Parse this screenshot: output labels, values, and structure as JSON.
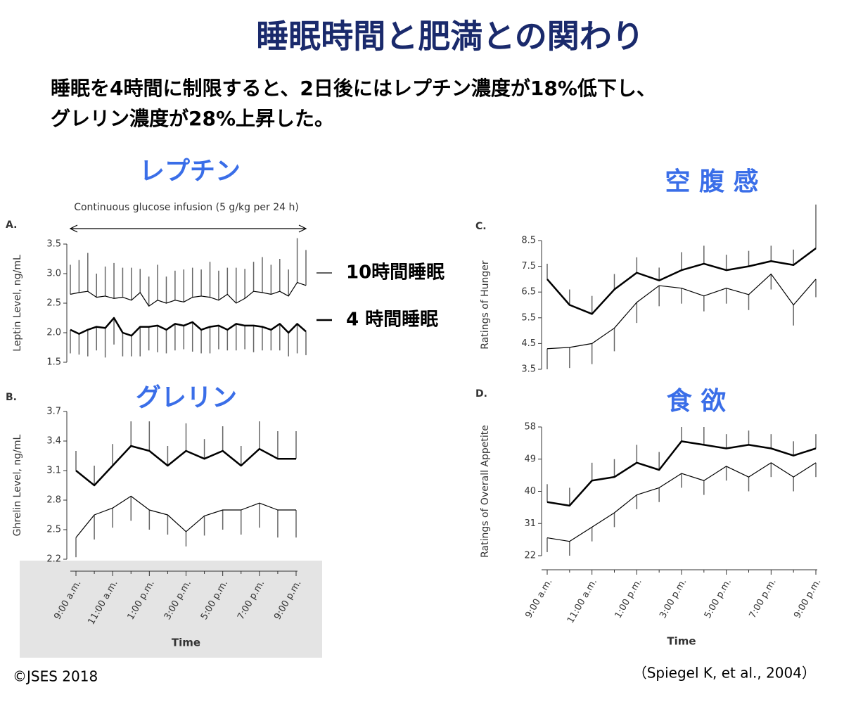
{
  "title": "睡眠時間と肥満との関わり",
  "subtitle": [
    "睡眠を4時間に制限すると、2日後にはレプチン濃度が18%低下し、",
    "グレリン濃度が28%上昇した。"
  ],
  "copyright": "©JSES 2018",
  "source": "（Spiegel K, et al., 2004）",
  "chart_data": [
    {
      "type": "line",
      "title": "レプチン",
      "panel": "A.",
      "annotation": "Continuous glucose infusion (5 g/kg per 24 h)",
      "y_label": "Leptin Level, ng/mL",
      "categories": [
        null,
        null,
        null,
        null,
        null,
        null,
        null,
        null,
        null,
        null,
        null,
        null,
        null,
        null,
        null,
        null,
        null,
        null,
        null,
        null,
        null,
        null,
        null,
        null,
        null,
        null,
        null,
        null
      ],
      "ylim": [
        1.5,
        3.5
      ],
      "yticks": [
        1.5,
        {
          "value": 2,
          "label": "2.0"
        },
        2.5,
        {
          "value": 3,
          "label": "3.0"
        },
        3.5
      ],
      "series": [
        {
          "name": "10時間睡眠",
          "color": "#000000",
          "width": 1.2,
          "error_side": "up",
          "values": [
            2.65,
            2.68,
            2.7,
            2.6,
            2.62,
            2.58,
            2.6,
            2.55,
            2.68,
            2.45,
            2.55,
            2.5,
            2.55,
            2.52,
            2.6,
            2.62,
            2.6,
            2.55,
            2.65,
            2.5,
            2.58,
            2.7,
            2.68,
            2.65,
            2.7,
            2.62,
            2.85,
            2.8
          ],
          "errors": [
            0.5,
            0.55,
            0.65,
            0.4,
            0.5,
            0.6,
            0.5,
            0.55,
            0.4,
            0.5,
            0.6,
            0.45,
            0.5,
            0.55,
            0.5,
            0.45,
            0.6,
            0.5,
            0.45,
            0.6,
            0.5,
            0.5,
            0.6,
            0.5,
            0.55,
            0.45,
            0.75,
            0.6
          ]
        },
        {
          "name": "4 時間睡眠",
          "color": "#000000",
          "width": 2.5,
          "error_side": "down",
          "values": [
            2.05,
            1.98,
            2.05,
            2.1,
            2.08,
            2.25,
            2.0,
            1.95,
            2.1,
            2.1,
            2.12,
            2.05,
            2.15,
            2.12,
            2.18,
            2.05,
            2.1,
            2.12,
            2.05,
            2.15,
            2.12,
            2.12,
            2.1,
            2.05,
            2.15,
            2.0,
            2.15,
            2.02
          ],
          "errors": [
            0.4,
            0.35,
            0.45,
            0.4,
            0.5,
            0.45,
            0.4,
            0.35,
            0.5,
            0.4,
            0.45,
            0.4,
            0.45,
            0.4,
            0.5,
            0.4,
            0.45,
            0.4,
            0.35,
            0.45,
            0.4,
            0.45,
            0.4,
            0.35,
            0.45,
            0.4,
            0.5,
            0.4
          ]
        }
      ]
    },
    {
      "type": "line",
      "title": "グレリン",
      "panel": "B.",
      "y_label": "Ghrelin Level, ng/mL",
      "x_label": "Time",
      "categories": [
        "9:00 a.m.",
        null,
        "11:00 a.m.",
        null,
        "1:00 p.m.",
        null,
        "3:00 p.m.",
        null,
        "5:00 p.m.",
        null,
        "7:00 p.m.",
        null,
        "9:00 p.m."
      ],
      "ylim": [
        2.2,
        3.7
      ],
      "yticks": [
        2.2,
        2.5,
        2.8,
        3.1,
        3.4,
        3.7
      ],
      "series": [
        {
          "color": "#000000",
          "width": 2.5,
          "error_side": "up",
          "values": [
            3.1,
            2.95,
            3.15,
            3.35,
            3.3,
            3.15,
            3.3,
            3.22,
            3.3,
            3.15,
            3.32,
            3.22,
            3.22
          ],
          "errors": [
            0.2,
            0.2,
            0.22,
            0.25,
            0.3,
            0.2,
            0.28,
            0.2,
            0.25,
            0.2,
            0.28,
            0.28,
            0.28
          ]
        },
        {
          "color": "#000000",
          "width": 1.2,
          "error_side": "down",
          "values": [
            2.42,
            2.65,
            2.72,
            2.84,
            2.7,
            2.65,
            2.48,
            2.64,
            2.7,
            2.7,
            2.77,
            2.7,
            2.7
          ],
          "errors": [
            0.2,
            0.25,
            0.2,
            0.25,
            0.2,
            0.2,
            0.15,
            0.2,
            0.2,
            0.25,
            0.25,
            0.28,
            0.28
          ]
        }
      ]
    },
    {
      "type": "line",
      "title": "空 腹 感",
      "panel": "C.",
      "y_label": "Ratings of Hunger",
      "categories": [
        null,
        null,
        null,
        null,
        null,
        null,
        null,
        null,
        null,
        null,
        null,
        null,
        null
      ],
      "ylim": [
        3.5,
        8.5
      ],
      "yticks": [
        3.5,
        4.5,
        5.5,
        6.5,
        7.5,
        8.5
      ],
      "series": [
        {
          "color": "#000000",
          "width": 2.5,
          "error_side": "up",
          "values": [
            7.0,
            6.0,
            5.65,
            6.6,
            7.25,
            6.95,
            7.35,
            7.6,
            7.35,
            7.5,
            7.7,
            7.55,
            8.2
          ],
          "errors": [
            0.6,
            0.6,
            0.7,
            0.6,
            0.6,
            0.5,
            0.7,
            0.7,
            0.6,
            0.6,
            0.6,
            0.6,
            1.7
          ]
        },
        {
          "color": "#000000",
          "width": 1.2,
          "error_side": "down",
          "values": [
            4.3,
            4.35,
            4.5,
            5.1,
            6.1,
            6.75,
            6.65,
            6.35,
            6.65,
            6.4,
            7.2,
            6.0,
            7.0
          ],
          "errors": [
            0.8,
            0.8,
            0.8,
            0.9,
            0.8,
            0.8,
            0.6,
            0.6,
            0.6,
            0.6,
            0.6,
            0.8,
            0.7
          ]
        }
      ]
    },
    {
      "type": "line",
      "title": "食 欲",
      "panel": "D.",
      "y_label": "Ratings of Overall Appetite",
      "x_label": "Time",
      "categories": [
        "9:00 a.m.",
        null,
        "11:00 a.m.",
        null,
        "1:00 p.m.",
        null,
        "3:00 p.m.",
        null,
        "5:00 p.m.",
        null,
        "7:00 p.m.",
        null,
        "9:00 p.m."
      ],
      "ylim": [
        22,
        58
      ],
      "yticks": [
        22,
        31,
        40,
        49,
        58
      ],
      "series": [
        {
          "color": "#000000",
          "width": 2.5,
          "error_side": "up",
          "values": [
            37,
            36,
            43,
            44,
            48,
            46,
            54,
            53,
            52,
            53,
            52,
            50,
            52
          ],
          "errors": [
            5,
            5,
            5,
            5,
            5,
            5,
            4,
            5,
            4,
            4,
            4,
            4,
            4
          ]
        },
        {
          "color": "#000000",
          "width": 1.2,
          "error_side": "down",
          "values": [
            27,
            26,
            30,
            34,
            39,
            41,
            45,
            43,
            47,
            44,
            48,
            44,
            48
          ],
          "errors": [
            4,
            4,
            4,
            4,
            4,
            4,
            4,
            4,
            4,
            4,
            4,
            4,
            4
          ]
        }
      ]
    }
  ]
}
